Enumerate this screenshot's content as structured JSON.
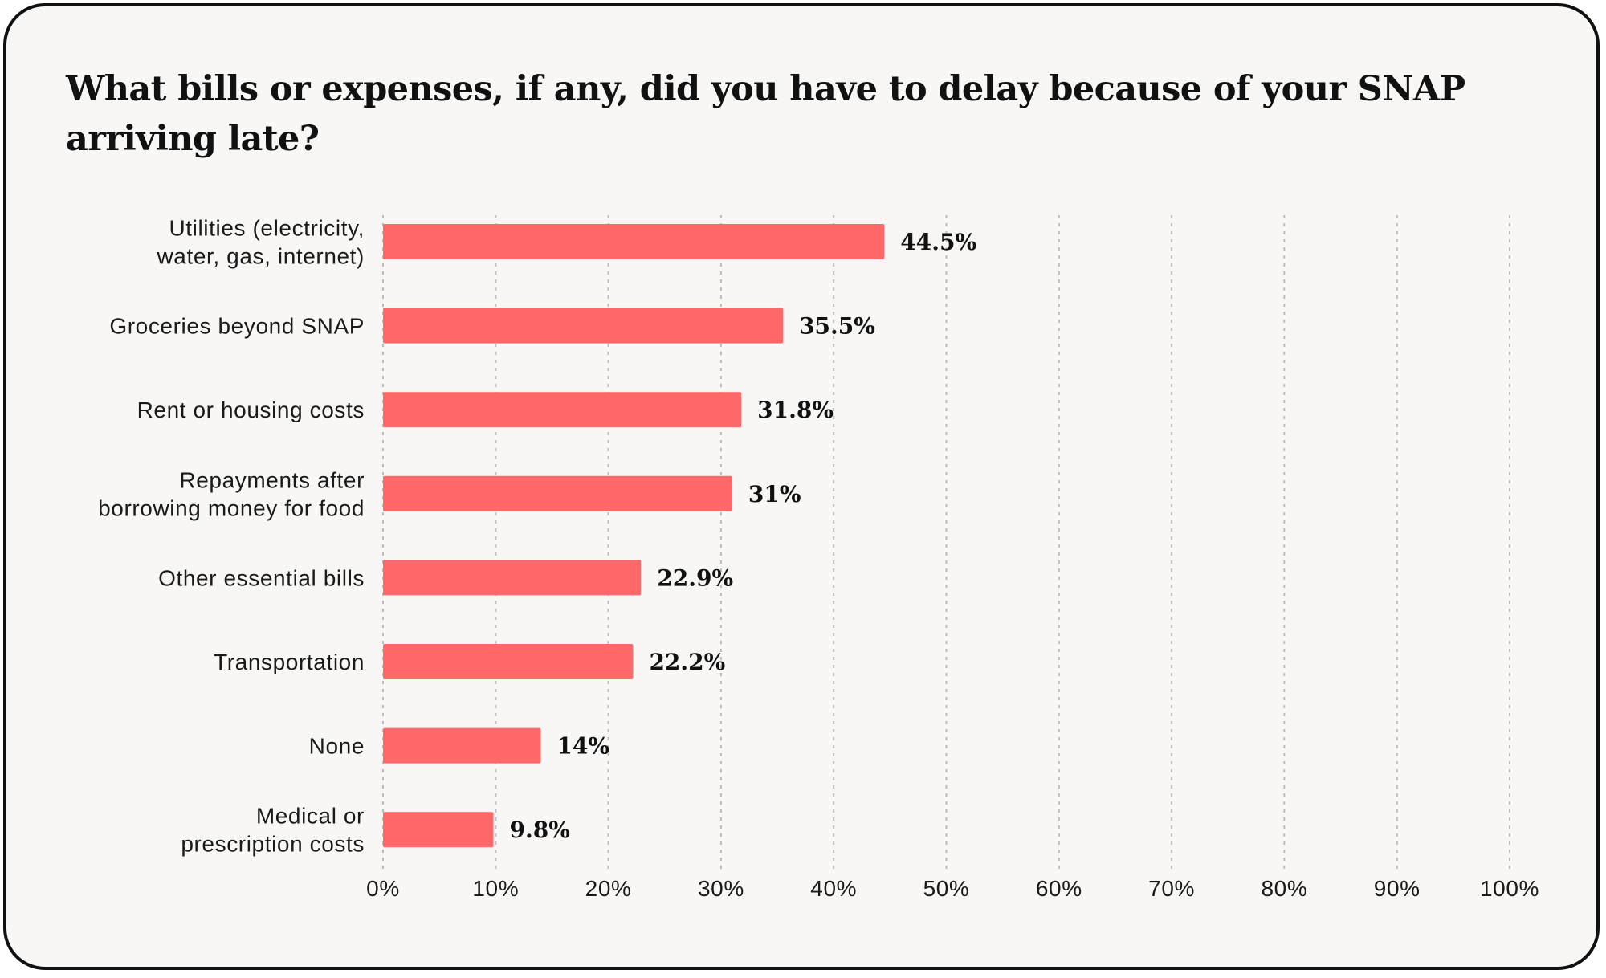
{
  "colors": {
    "bar": "#ff6868",
    "background": "#f8f7f5",
    "border": "#111111",
    "text": "#111111"
  },
  "chart_data": {
    "type": "bar",
    "orientation": "horizontal",
    "title": "What bills or expenses, if any, did you have to delay because of your SNAP arriving late?",
    "categories": [
      [
        "Utilities (electricity,",
        "water, gas, internet)"
      ],
      [
        "Groceries beyond SNAP"
      ],
      [
        "Rent or housing costs"
      ],
      [
        "Repayments after",
        "borrowing money for food"
      ],
      [
        "Other essential bills"
      ],
      [
        "Transportation"
      ],
      [
        "None"
      ],
      [
        "Medical or",
        "prescription costs"
      ]
    ],
    "values": [
      44.5,
      35.5,
      31.8,
      31,
      22.9,
      22.2,
      14,
      9.8
    ],
    "value_labels": [
      "44.5%",
      "35.5%",
      "31.8%",
      "31%",
      "22.9%",
      "22.2%",
      "14%",
      "9.8%"
    ],
    "xlim": [
      0,
      100
    ],
    "x_ticks": [
      0,
      10,
      20,
      30,
      40,
      50,
      60,
      70,
      80,
      90,
      100
    ],
    "x_tick_labels": [
      "0%",
      "10%",
      "20%",
      "30%",
      "40%",
      "50%",
      "60%",
      "70%",
      "80%",
      "90%",
      "100%"
    ],
    "xlabel": "",
    "ylabel": "",
    "grid": "vertical dashed",
    "legend": "none"
  }
}
